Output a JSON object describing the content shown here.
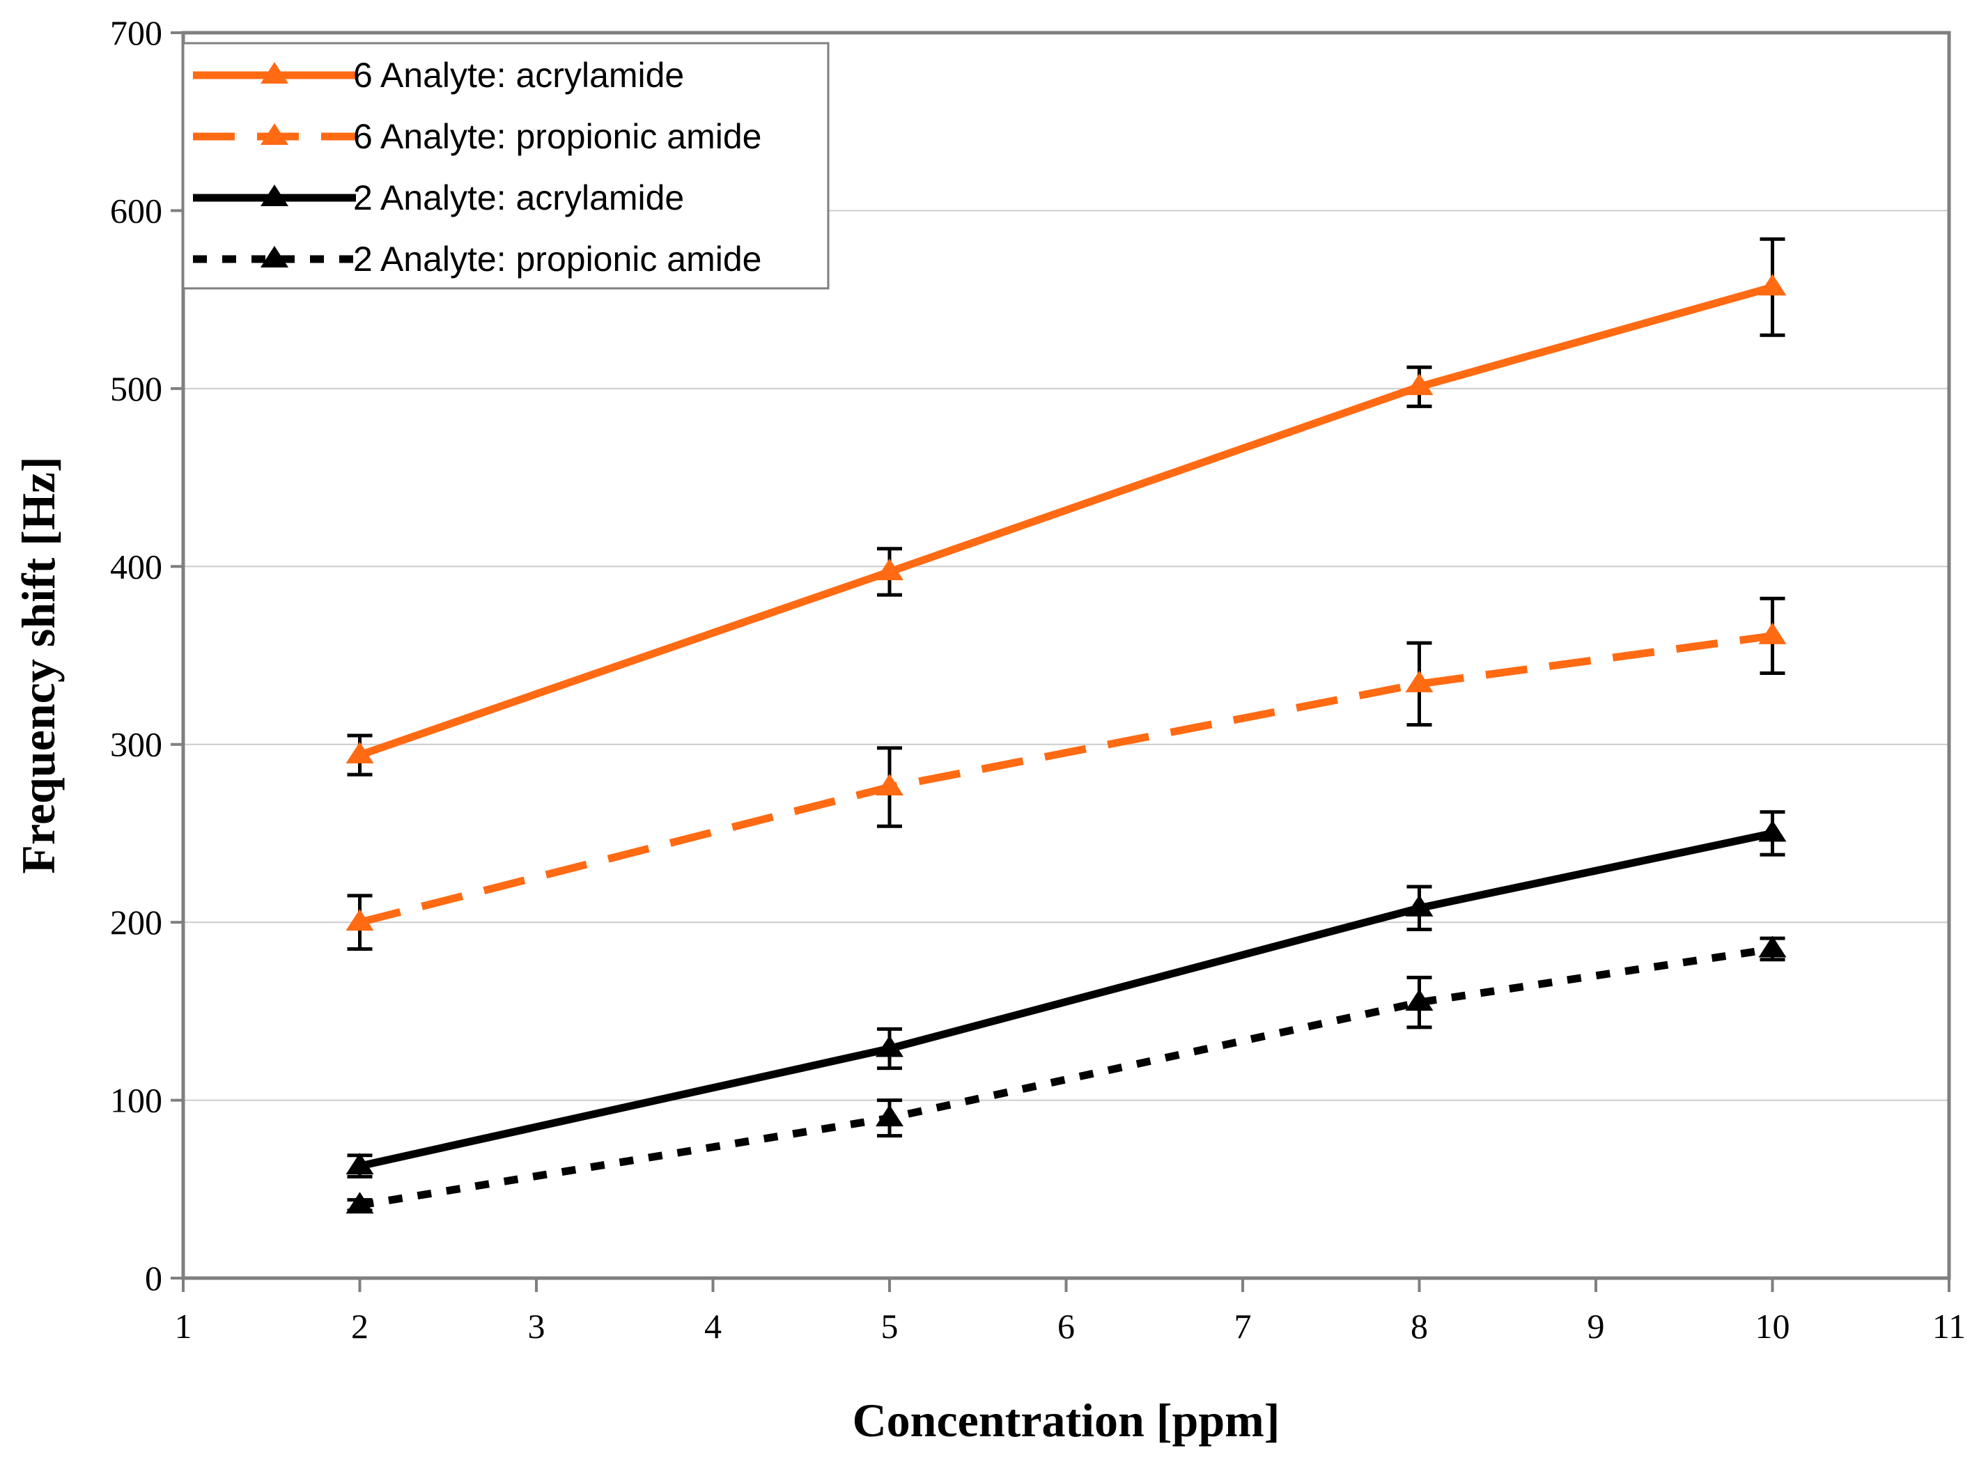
{
  "chart_data": {
    "type": "line",
    "title": "",
    "xlabel": "Concentration [ppm]",
    "ylabel": "Frequency shift [Hz]",
    "xlim": [
      1,
      11
    ],
    "ylim": [
      0,
      700
    ],
    "xticks": [
      1,
      2,
      3,
      4,
      5,
      6,
      7,
      8,
      9,
      10,
      11
    ],
    "yticks": [
      0,
      100,
      200,
      300,
      400,
      500,
      600,
      700
    ],
    "grid": "horizontal",
    "legend_position": "top-left",
    "x": [
      2,
      5,
      8,
      10
    ],
    "series": [
      {
        "name": "6 Analyte: acrylamide",
        "color": "#ff6a13",
        "dash": "solid",
        "marker": "triangle",
        "values": [
          294,
          397,
          501,
          557
        ],
        "errors": [
          11,
          13,
          11,
          27
        ]
      },
      {
        "name": "6 Analyte: propionic amide",
        "color": "#ff6a13",
        "dash": "dashed",
        "marker": "triangle",
        "values": [
          200,
          276,
          334,
          361
        ],
        "errors": [
          15,
          22,
          23,
          21
        ]
      },
      {
        "name": "2 Analyte: acrylamide",
        "color": "#000000",
        "dash": "solid",
        "marker": "triangle",
        "values": [
          63,
          129,
          208,
          250
        ],
        "errors": [
          6,
          11,
          12,
          12
        ]
      },
      {
        "name": "2 Analyte: propionic amide",
        "color": "#000000",
        "dash": "dotted",
        "marker": "triangle",
        "values": [
          41,
          90,
          155,
          185
        ],
        "errors": [
          3,
          10,
          14,
          6
        ]
      }
    ]
  }
}
